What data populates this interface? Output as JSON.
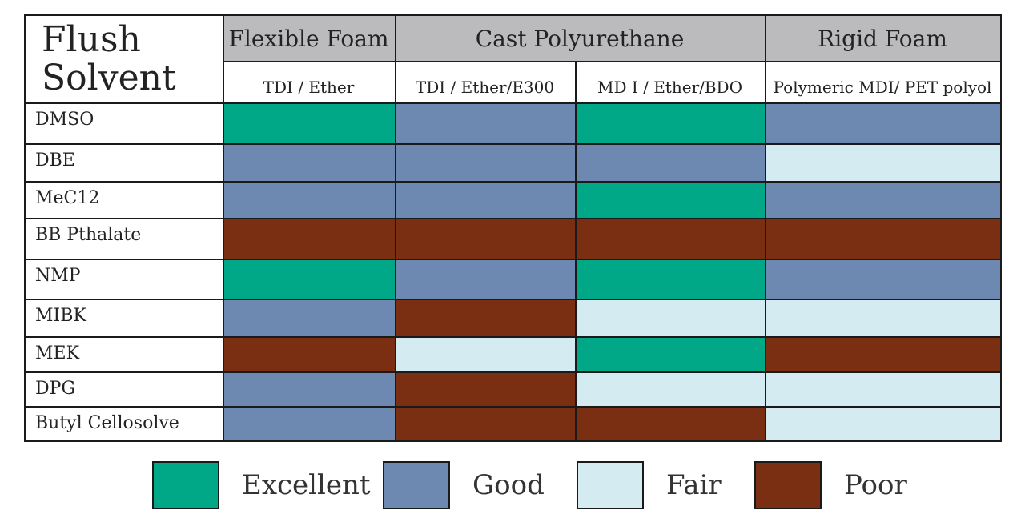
{
  "chart_data": {
    "type": "table",
    "corner_label": [
      "Flush",
      "Solvent"
    ],
    "groups": [
      "Flexible Foam",
      "Cast Polyurethane",
      "Rigid Foam"
    ],
    "columns": [
      "TDI / Ether",
      "TDI / Ether/E300",
      "MD I / Ether/BDO",
      "Polymeric MDI/ PET polyol"
    ],
    "rows": [
      {
        "solvent": "DMSO",
        "ratings": [
          "Excellent",
          "Good",
          "Excellent",
          "Good"
        ]
      },
      {
        "solvent": "DBE",
        "ratings": [
          "Good",
          "Good",
          "Good",
          "Fair"
        ]
      },
      {
        "solvent": "MeC12",
        "ratings": [
          "Good",
          "Good",
          "Excellent",
          "Good"
        ]
      },
      {
        "solvent": "BB Pthalate",
        "ratings": [
          "Poor",
          "Poor",
          "Poor",
          "Poor"
        ]
      },
      {
        "solvent": "NMP",
        "ratings": [
          "Excellent",
          "Good",
          "Excellent",
          "Good"
        ]
      },
      {
        "solvent": "MIBK",
        "ratings": [
          "Good",
          "Poor",
          "Fair",
          "Fair"
        ]
      },
      {
        "solvent": "MEK",
        "ratings": [
          "Poor",
          "Fair",
          "Excellent",
          "Poor"
        ]
      },
      {
        "solvent": "DPG",
        "ratings": [
          "Good",
          "Poor",
          "Fair",
          "Fair"
        ]
      },
      {
        "solvent": "Butyl Cellosolve",
        "ratings": [
          "Good",
          "Poor",
          "Poor",
          "Fair"
        ]
      }
    ],
    "legend": [
      {
        "label": "Excellent",
        "color": "#00a887"
      },
      {
        "label": "Good",
        "color": "#6d89b1"
      },
      {
        "label": "Fair",
        "color": "#d4ecf1"
      },
      {
        "label": "Poor",
        "color": "#7a2f12"
      }
    ],
    "header_color": "#bbbbbd"
  }
}
